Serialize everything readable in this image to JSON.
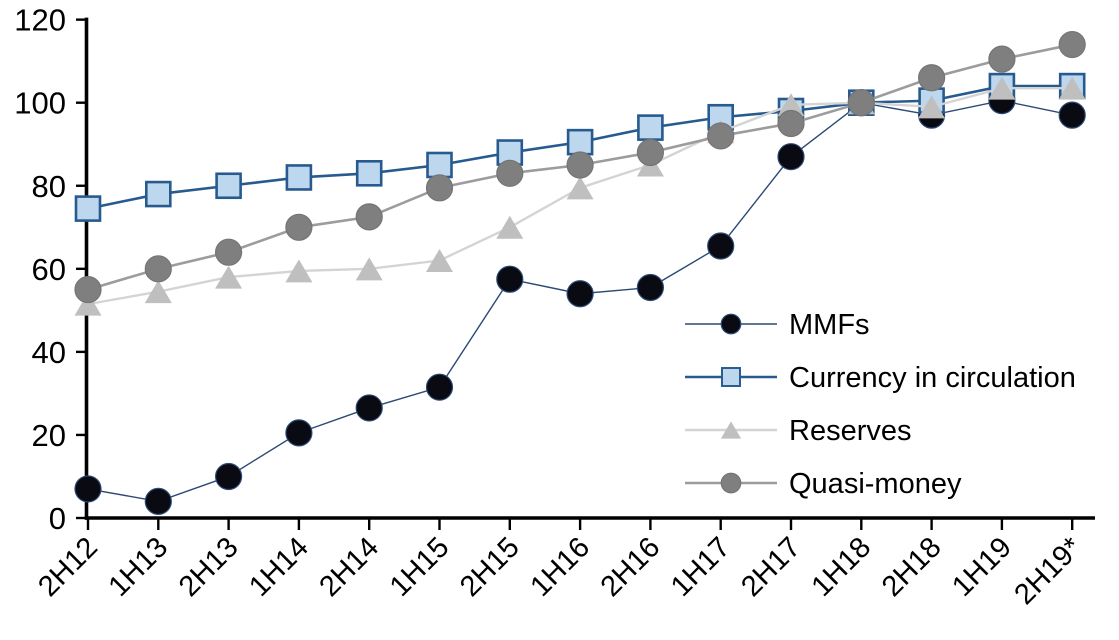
{
  "chart_data": {
    "type": "line",
    "title": "",
    "xlabel": "",
    "ylabel": "",
    "categories": [
      "2H12",
      "1H13",
      "2H13",
      "1H14",
      "2H14",
      "1H15",
      "2H15",
      "1H16",
      "2H16",
      "1H17",
      "2H17",
      "1H18",
      "2H18",
      "1H19",
      "2H19*"
    ],
    "series": [
      {
        "name": "MMFs",
        "marker": "circle",
        "values": [
          7,
          4,
          10,
          20.5,
          26.5,
          31.5,
          57.5,
          54,
          55.5,
          65.5,
          87,
          100,
          97,
          100.5,
          97
        ],
        "line_color": "#2c4a76",
        "marker_fill": "#0a0a12",
        "marker_stroke": "#2c4a76"
      },
      {
        "name": "Currency in circulation",
        "marker": "square",
        "values": [
          74.5,
          78,
          80,
          82,
          83,
          85,
          88,
          90.5,
          94,
          96.5,
          98,
          100,
          100.5,
          104,
          104
        ],
        "line_color": "#275a8e",
        "marker_fill": "#bdd7ee",
        "marker_stroke": "#275a8e"
      },
      {
        "name": "Reserves",
        "marker": "triangle",
        "values": [
          51.5,
          54.5,
          58,
          59.5,
          60,
          62,
          70,
          79.5,
          85,
          93,
          99.5,
          100,
          99,
          103.5,
          103.5
        ],
        "line_color": "#d4d4d4",
        "marker_fill": "#bfbfbf",
        "marker_stroke": "none"
      },
      {
        "name": "Quasi-money",
        "marker": "circle",
        "values": [
          55,
          60,
          64,
          70,
          72.5,
          79.5,
          83,
          85,
          88,
          92,
          95,
          100,
          106,
          110.5,
          114
        ],
        "line_color": "#9c9c9c",
        "marker_fill": "#7f7f7f",
        "marker_stroke": "#757575"
      }
    ],
    "ylim": [
      0,
      120
    ],
    "yticks": [
      0,
      20,
      40,
      60,
      80,
      100,
      120
    ],
    "grid": false,
    "legend_position": "inside-right",
    "axis_color": "#000000",
    "background_color": "#ffffff"
  }
}
